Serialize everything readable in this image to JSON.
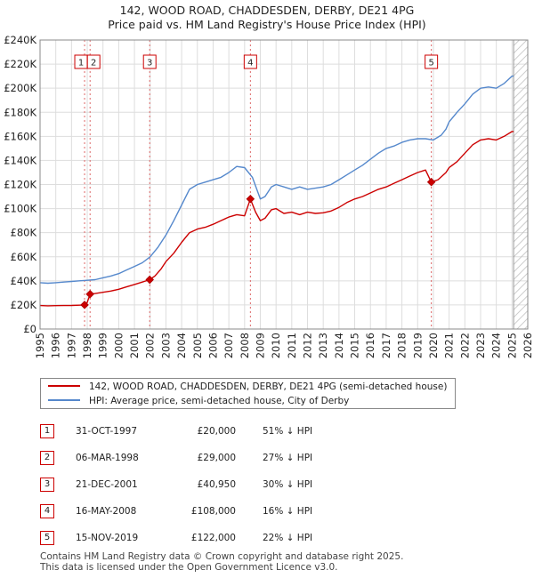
{
  "chart_data": {
    "type": "line",
    "title": "142, WOOD ROAD, CHADDESDEN, DERBY, DE21 4PG",
    "subtitle": "Price paid vs. HM Land Registry's House Price Index (HPI)",
    "xlabel": "",
    "ylabel": "",
    "xlim": [
      1995,
      2026
    ],
    "ylim": [
      0,
      240000
    ],
    "x_ticks": [
      "1995",
      "1996",
      "1997",
      "1998",
      "1999",
      "2000",
      "2001",
      "2002",
      "2003",
      "2004",
      "2005",
      "2006",
      "2007",
      "2008",
      "2009",
      "2010",
      "2011",
      "2012",
      "2013",
      "2014",
      "2015",
      "2016",
      "2017",
      "2018",
      "2019",
      "2020",
      "2021",
      "2022",
      "2023",
      "2024",
      "2025",
      "2026"
    ],
    "y_ticks": [
      "£0",
      "£20K",
      "£40K",
      "£60K",
      "£80K",
      "£100K",
      "£120K",
      "£140K",
      "£160K",
      "£180K",
      "£200K",
      "£220K",
      "£240K"
    ],
    "y_tick_values": [
      0,
      20000,
      40000,
      60000,
      80000,
      100000,
      120000,
      140000,
      160000,
      180000,
      200000,
      220000,
      240000
    ],
    "grid": true,
    "future_shade_from": 2025.1,
    "series": [
      {
        "name": "142, WOOD ROAD, CHADDESDEN, DERBY, DE21 4PG (semi-detached house)",
        "color": "#cc0000",
        "points": [
          [
            1995.0,
            19500
          ],
          [
            1995.5,
            19300
          ],
          [
            1996.0,
            19400
          ],
          [
            1996.5,
            19500
          ],
          [
            1997.0,
            19600
          ],
          [
            1997.5,
            19800
          ],
          [
            1997.83,
            20000
          ],
          [
            1998.0,
            22000
          ],
          [
            1998.18,
            29000
          ],
          [
            1998.5,
            29500
          ],
          [
            1999.0,
            30500
          ],
          [
            1999.5,
            31500
          ],
          [
            2000.0,
            33000
          ],
          [
            2000.5,
            35000
          ],
          [
            2001.0,
            37000
          ],
          [
            2001.5,
            39000
          ],
          [
            2001.97,
            40950
          ],
          [
            2002.3,
            44000
          ],
          [
            2002.7,
            50000
          ],
          [
            2003.0,
            56000
          ],
          [
            2003.5,
            63000
          ],
          [
            2004.0,
            72000
          ],
          [
            2004.5,
            80000
          ],
          [
            2005.0,
            83000
          ],
          [
            2005.5,
            84500
          ],
          [
            2006.0,
            87000
          ],
          [
            2006.5,
            90000
          ],
          [
            2007.0,
            93000
          ],
          [
            2007.5,
            95000
          ],
          [
            2008.0,
            94000
          ],
          [
            2008.37,
            108000
          ],
          [
            2008.7,
            97000
          ],
          [
            2009.0,
            90000
          ],
          [
            2009.3,
            92000
          ],
          [
            2009.7,
            99000
          ],
          [
            2010.0,
            100000
          ],
          [
            2010.5,
            96000
          ],
          [
            2011.0,
            97000
          ],
          [
            2011.5,
            95000
          ],
          [
            2012.0,
            97000
          ],
          [
            2012.5,
            96000
          ],
          [
            2013.0,
            96500
          ],
          [
            2013.5,
            98000
          ],
          [
            2014.0,
            101000
          ],
          [
            2014.5,
            105000
          ],
          [
            2015.0,
            108000
          ],
          [
            2015.5,
            110000
          ],
          [
            2016.0,
            113000
          ],
          [
            2016.5,
            116000
          ],
          [
            2017.0,
            118000
          ],
          [
            2017.5,
            121000
          ],
          [
            2018.0,
            124000
          ],
          [
            2018.5,
            127000
          ],
          [
            2019.0,
            130000
          ],
          [
            2019.5,
            132000
          ],
          [
            2019.87,
            122000
          ],
          [
            2020.3,
            124000
          ],
          [
            2020.8,
            130000
          ],
          [
            2021.0,
            134000
          ],
          [
            2021.5,
            139000
          ],
          [
            2022.0,
            146000
          ],
          [
            2022.5,
            153000
          ],
          [
            2023.0,
            157000
          ],
          [
            2023.5,
            158000
          ],
          [
            2024.0,
            157000
          ],
          [
            2024.5,
            160000
          ],
          [
            2025.0,
            164000
          ],
          [
            2025.1,
            164000
          ]
        ]
      },
      {
        "name": "HPI: Average price, semi-detached house, City of Derby",
        "color": "#5588cc",
        "points": [
          [
            1995.0,
            38500
          ],
          [
            1995.5,
            38000
          ],
          [
            1996.0,
            38500
          ],
          [
            1996.5,
            39000
          ],
          [
            1997.0,
            39500
          ],
          [
            1997.5,
            40000
          ],
          [
            1998.0,
            40500
          ],
          [
            1998.5,
            41000
          ],
          [
            1999.0,
            42500
          ],
          [
            1999.5,
            44000
          ],
          [
            2000.0,
            46000
          ],
          [
            2000.5,
            49000
          ],
          [
            2001.0,
            52000
          ],
          [
            2001.5,
            55000
          ],
          [
            2002.0,
            60000
          ],
          [
            2002.5,
            68000
          ],
          [
            2003.0,
            78000
          ],
          [
            2003.5,
            90000
          ],
          [
            2004.0,
            103000
          ],
          [
            2004.5,
            116000
          ],
          [
            2005.0,
            120000
          ],
          [
            2005.5,
            122000
          ],
          [
            2006.0,
            124000
          ],
          [
            2006.5,
            126000
          ],
          [
            2007.0,
            130000
          ],
          [
            2007.5,
            135000
          ],
          [
            2008.0,
            134000
          ],
          [
            2008.5,
            126000
          ],
          [
            2009.0,
            108000
          ],
          [
            2009.3,
            110000
          ],
          [
            2009.7,
            118000
          ],
          [
            2010.0,
            120000
          ],
          [
            2010.5,
            118000
          ],
          [
            2011.0,
            116000
          ],
          [
            2011.5,
            118000
          ],
          [
            2012.0,
            116000
          ],
          [
            2012.5,
            117000
          ],
          [
            2013.0,
            118000
          ],
          [
            2013.5,
            120000
          ],
          [
            2014.0,
            124000
          ],
          [
            2014.5,
            128000
          ],
          [
            2015.0,
            132000
          ],
          [
            2015.5,
            136000
          ],
          [
            2016.0,
            141000
          ],
          [
            2016.5,
            146000
          ],
          [
            2017.0,
            150000
          ],
          [
            2017.5,
            152000
          ],
          [
            2018.0,
            155000
          ],
          [
            2018.5,
            157000
          ],
          [
            2019.0,
            158000
          ],
          [
            2019.5,
            158000
          ],
          [
            2020.0,
            157000
          ],
          [
            2020.5,
            161000
          ],
          [
            2020.8,
            166000
          ],
          [
            2021.0,
            172000
          ],
          [
            2021.5,
            180000
          ],
          [
            2022.0,
            187000
          ],
          [
            2022.5,
            195000
          ],
          [
            2023.0,
            200000
          ],
          [
            2023.5,
            201000
          ],
          [
            2024.0,
            200000
          ],
          [
            2024.5,
            204000
          ],
          [
            2025.0,
            210000
          ],
          [
            2025.1,
            210000
          ]
        ]
      }
    ],
    "sales": [
      {
        "id": "1",
        "year": 1997.83,
        "price": 20000
      },
      {
        "id": "2",
        "year": 1998.18,
        "price": 29000
      },
      {
        "id": "3",
        "year": 2001.97,
        "price": 40950
      },
      {
        "id": "4",
        "year": 2008.37,
        "price": 108000
      },
      {
        "id": "5",
        "year": 2019.87,
        "price": 122000
      }
    ]
  },
  "legend": {
    "property_label": "142, WOOD ROAD, CHADDESDEN, DERBY, DE21 4PG (semi-detached house)",
    "hpi_label": "HPI: Average price, semi-detached house, City of Derby",
    "property_color": "#cc0000",
    "hpi_color": "#5588cc"
  },
  "table": [
    {
      "num": "1",
      "date": "31-OCT-1997",
      "price": "£20,000",
      "hpi": "51% ↓ HPI"
    },
    {
      "num": "2",
      "date": "06-MAR-1998",
      "price": "£29,000",
      "hpi": "27% ↓ HPI"
    },
    {
      "num": "3",
      "date": "21-DEC-2001",
      "price": "£40,950",
      "hpi": "30% ↓ HPI"
    },
    {
      "num": "4",
      "date": "16-MAY-2008",
      "price": "£108,000",
      "hpi": "16% ↓ HPI"
    },
    {
      "num": "5",
      "date": "15-NOV-2019",
      "price": "£122,000",
      "hpi": "22% ↓ HPI"
    }
  ],
  "footer": {
    "line1": "Contains HM Land Registry data © Crown copyright and database right 2025.",
    "line2": "This data is licensed under the Open Government Licence v3.0."
  }
}
